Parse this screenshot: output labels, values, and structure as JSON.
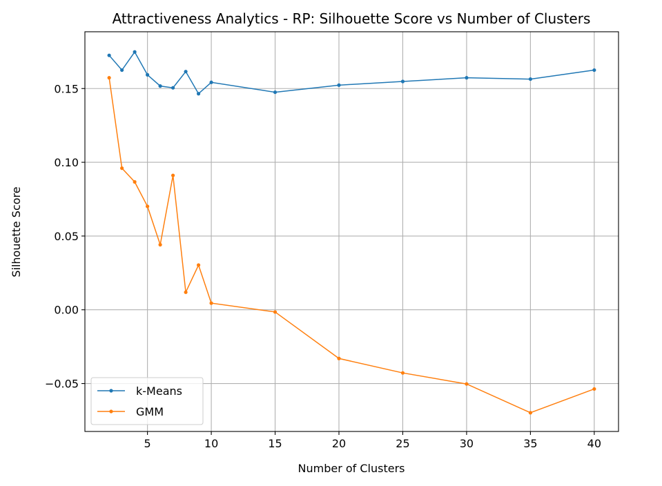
{
  "chart_data": {
    "type": "line",
    "title": "Attractiveness Analytics - RP: Silhouette Score vs Number of Clusters",
    "xlabel": "Number of Clusters",
    "ylabel": "Silhouette Score",
    "xlim": [
      0.1,
      41.9
    ],
    "ylim": [
      -0.0825,
      0.1885
    ],
    "xticks": [
      5,
      10,
      15,
      20,
      25,
      30,
      35,
      40
    ],
    "xtick_labels": [
      "5",
      "10",
      "15",
      "20",
      "25",
      "30",
      "35",
      "40"
    ],
    "yticks": [
      -0.05,
      0.0,
      0.05,
      0.1,
      0.15
    ],
    "ytick_labels": [
      "−0.05",
      "0.00",
      "0.05",
      "0.10",
      "0.15"
    ],
    "grid": true,
    "legend_position": "lower-left",
    "x": [
      2,
      3,
      4,
      5,
      6,
      7,
      8,
      9,
      10,
      15,
      20,
      25,
      30,
      35,
      40
    ],
    "series": [
      {
        "name": "k-Means",
        "color": "#1f77b4",
        "values": [
          0.1725,
          0.1625,
          0.1748,
          0.1593,
          0.1517,
          0.1505,
          0.1615,
          0.1465,
          0.1542,
          0.1475,
          0.1523,
          0.1548,
          0.1573,
          0.1564,
          0.1625
        ]
      },
      {
        "name": "GMM",
        "color": "#ff7f0e",
        "values": [
          0.1573,
          0.096,
          0.0867,
          0.0701,
          0.0441,
          0.0911,
          0.0119,
          0.0303,
          0.0045,
          -0.0015,
          -0.033,
          -0.0428,
          -0.0503,
          -0.0698,
          -0.0537
        ]
      }
    ]
  }
}
